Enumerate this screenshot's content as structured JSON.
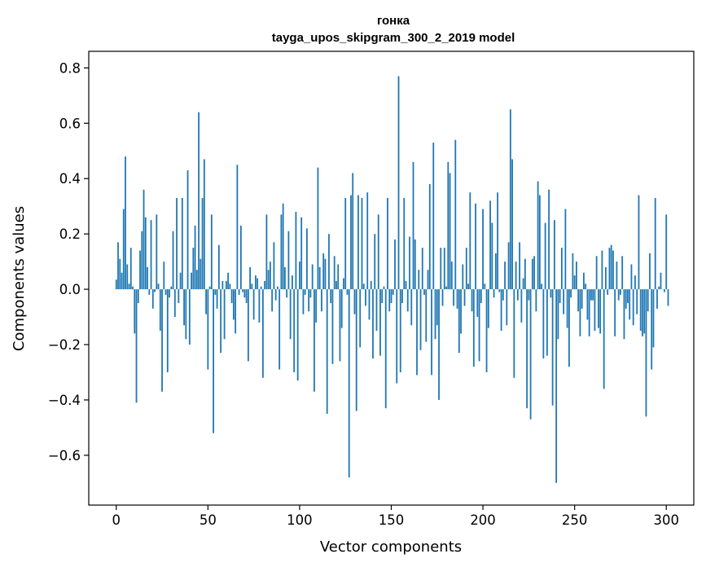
{
  "chart_data": {
    "type": "bar",
    "title": "гонка",
    "subtitle": "tayga_upos_skipgram_300_2_2019 model",
    "xlabel": "Vector components",
    "ylabel": "Components values",
    "xlim": [
      -15,
      315
    ],
    "ylim": [
      -0.78,
      0.86
    ],
    "x_ticks": [
      0,
      50,
      100,
      150,
      200,
      250,
      300
    ],
    "y_ticks": [
      -0.6,
      -0.4,
      -0.2,
      0.0,
      0.2,
      0.4,
      0.6,
      0.8
    ],
    "y_tick_labels": [
      "−0.6",
      "−0.4",
      "−0.2",
      "0.0",
      "0.2",
      "0.4",
      "0.6",
      "0.8"
    ],
    "grid": false,
    "bar_color": "#1f77b4",
    "values": [
      0.035,
      0.17,
      0.11,
      0.06,
      0.29,
      0.48,
      0.09,
      0.02,
      0.15,
      0.01,
      -0.16,
      -0.41,
      -0.05,
      0.14,
      0.21,
      0.36,
      0.26,
      0.08,
      -0.02,
      0.25,
      -0.07,
      -0.01,
      0.27,
      0.02,
      -0.15,
      -0.37,
      0.1,
      -0.02,
      -0.3,
      -0.03,
      0.01,
      0.21,
      -0.1,
      0.33,
      -0.05,
      0.06,
      0.33,
      -0.13,
      -0.18,
      0.43,
      -0.2,
      0.06,
      0.15,
      0.23,
      0.07,
      0.64,
      0.11,
      0.33,
      0.47,
      -0.09,
      -0.29,
      0.01,
      0.27,
      -0.52,
      -0.02,
      -0.07,
      0.16,
      -0.23,
      0.03,
      -0.18,
      0.03,
      0.06,
      0.02,
      -0.05,
      -0.11,
      -0.16,
      0.45,
      -0.02,
      0.23,
      -0.01,
      -0.03,
      -0.05,
      -0.26,
      0.08,
      0.02,
      -0.11,
      0.05,
      0.04,
      -0.12,
      0.01,
      -0.32,
      0.03,
      0.27,
      0.07,
      0.1,
      -0.08,
      0.17,
      -0.04,
      0.01,
      -0.29,
      0.27,
      0.31,
      0.08,
      -0.03,
      0.21,
      -0.18,
      0.05,
      -0.3,
      0.28,
      -0.33,
      0.1,
      0.26,
      -0.09,
      -0.02,
      0.22,
      -0.08,
      -0.03,
      0.09,
      -0.37,
      -0.12,
      0.44,
      0.08,
      -0.08,
      0.13,
      0.11,
      -0.45,
      0.2,
      -0.05,
      -0.27,
      0.12,
      0.03,
      0.09,
      -0.26,
      -0.14,
      0.04,
      0.33,
      -0.02,
      -0.68,
      0.34,
      0.42,
      -0.09,
      -0.44,
      0.34,
      -0.21,
      0.33,
      0.02,
      -0.06,
      0.35,
      -0.11,
      0.03,
      -0.25,
      0.2,
      -0.15,
      0.27,
      -0.24,
      -0.05,
      0.01,
      -0.43,
      0.33,
      -0.08,
      -0.05,
      -0.02,
      0.18,
      -0.34,
      0.77,
      -0.3,
      -0.05,
      0.33,
      0.03,
      -0.08,
      0.19,
      -0.13,
      0.46,
      0.18,
      -0.31,
      0.07,
      -0.22,
      0.15,
      -0.02,
      -0.19,
      0.07,
      0.38,
      -0.31,
      0.53,
      -0.18,
      -0.13,
      -0.4,
      0.15,
      -0.06,
      0.15,
      0.01,
      0.46,
      0.42,
      0.1,
      -0.06,
      0.54,
      -0.07,
      -0.23,
      -0.16,
      0.09,
      -0.06,
      0.15,
      0.02,
      0.35,
      -0.08,
      -0.28,
      0.31,
      -0.1,
      -0.26,
      -0.05,
      0.29,
      0.02,
      -0.3,
      -0.14,
      0.32,
      0.24,
      -0.03,
      0.13,
      0.35,
      -0.01,
      -0.15,
      -0.04,
      0.1,
      -0.13,
      0.17,
      0.65,
      0.47,
      -0.32,
      0.1,
      -0.04,
      0.17,
      -0.12,
      0.04,
      0.11,
      -0.43,
      -0.04,
      -0.47,
      0.11,
      0.12,
      -0.08,
      0.39,
      0.34,
      0.02,
      -0.25,
      0.24,
      -0.24,
      0.36,
      -0.03,
      -0.42,
      0.25,
      -0.7,
      -0.18,
      -0.05,
      0.15,
      -0.09,
      0.29,
      -0.14,
      -0.28,
      -0.03,
      0.13,
      0.05,
      0.1,
      -0.08,
      -0.17,
      -0.07,
      0.06,
      0.02,
      -0.11,
      -0.17,
      -0.04,
      -0.04,
      -0.15,
      0.12,
      -0.14,
      -0.16,
      0.14,
      -0.36,
      0.08,
      -0.02,
      0.15,
      0.16,
      0.14,
      -0.17,
      0.1,
      -0.04,
      -0.02,
      0.12,
      -0.18,
      -0.07,
      -0.05,
      -0.11,
      0.09,
      -0.13,
      0.05,
      -0.09,
      0.34,
      -0.15,
      -0.17,
      -0.16,
      -0.46,
      -0.08,
      0.13,
      -0.29,
      -0.21,
      0.33,
      -0.07,
      0.01,
      0.06,
      0.0,
      -0.01,
      0.27,
      -0.06
    ]
  }
}
